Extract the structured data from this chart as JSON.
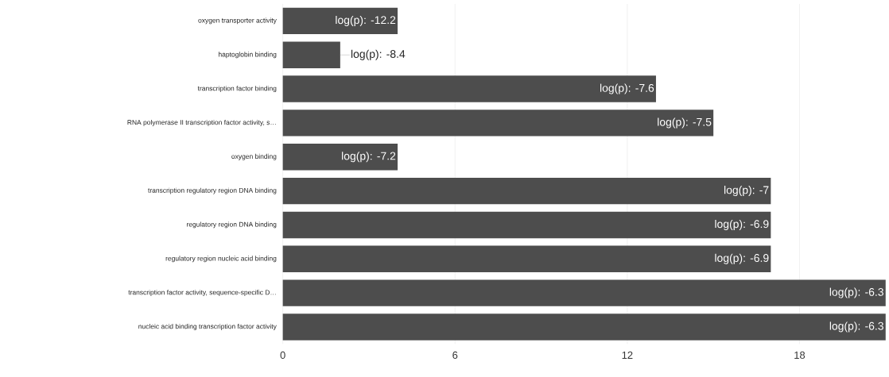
{
  "chart_data": {
    "type": "bar",
    "orientation": "horizontal",
    "categories": [
      "oxygen transporter activity",
      "haptoglobin binding",
      "transcription factor binding",
      "RNA polymerase II transcription factor activity, s…",
      "oxygen binding",
      "transcription regulatory region DNA binding",
      "regulatory region DNA binding",
      "regulatory region nucleic acid binding",
      "transcription factor activity, sequence-specific D…",
      "nucleic acid binding transcription factor activity"
    ],
    "values": [
      4,
      2,
      13,
      15,
      4,
      17,
      17,
      17,
      21,
      21
    ],
    "annotations": [
      {
        "text": "log(p): -12.2",
        "x": 4,
        "y": "oxygen transporter activity"
      },
      {
        "text": "log(p): -8.4",
        "x": 2,
        "y": "haptoglobin binding"
      },
      {
        "text": "log(p): -7.6",
        "x": 13,
        "y": "transcription factor binding"
      },
      {
        "text": "log(p): -7.5",
        "x": 15,
        "y": "RNA polymerase II transcription factor activity, s…"
      },
      {
        "text": "log(p): -7.2",
        "x": 4,
        "y": "oxygen binding"
      },
      {
        "text": "log(p): -7",
        "x": 17,
        "y": "transcription regulatory region DNA binding"
      },
      {
        "text": "log(p): -6.9",
        "x": 17,
        "y": "regulatory region DNA binding"
      },
      {
        "text": "log(p): -6.9",
        "x": 17,
        "y": "regulatory region nucleic acid binding"
      },
      {
        "text": "log(p): -6.3",
        "x": 21,
        "y": "transcription factor activity, sequence-specific D…"
      },
      {
        "text": "log(p): -6.3",
        "x": 21,
        "y": "nucleic acid binding transcription factor activity"
      }
    ],
    "color": "#4d4d4d",
    "xlim": [
      0,
      21
    ],
    "xticks": [
      0,
      6,
      12,
      18
    ],
    "grid": "x"
  }
}
